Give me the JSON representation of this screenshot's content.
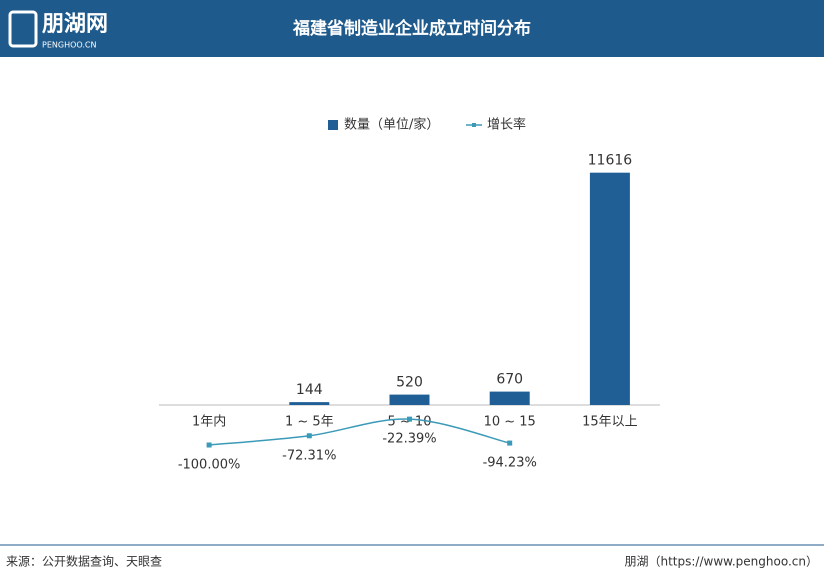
{
  "header": {
    "logo": "朋湖网",
    "logo_sub": "PENGHOO.CN"
  },
  "chart_data": {
    "type": "bar-line",
    "title": "福建省制造业企业成立时间分布",
    "categories": [
      "1年内",
      "1 ~ 5年",
      "5 ~ 10",
      "10 ~ 15",
      "15年以上"
    ],
    "series": [
      {
        "name": "数量（单位/家）",
        "type": "bar",
        "color": "#1f5f95",
        "values": [
          null,
          144,
          520,
          670,
          11616
        ]
      },
      {
        "name": "增长率",
        "type": "line",
        "axis": "y2",
        "color": "#3a9ab8",
        "values": [
          -100.0,
          -72.31,
          -22.39,
          -94.23,
          null
        ],
        "value_labels": [
          "-100.00%",
          "-72.31%",
          "-22.39%",
          "-94.23%",
          null
        ]
      }
    ],
    "ylim": [
      0,
      12000
    ],
    "y2lim": [
      20,
      740
    ],
    "legend": "top"
  },
  "footer": {
    "source": "来源：公开数据查询、天眼查",
    "credit": "朋湖（https://www.penghoo.cn）"
  }
}
